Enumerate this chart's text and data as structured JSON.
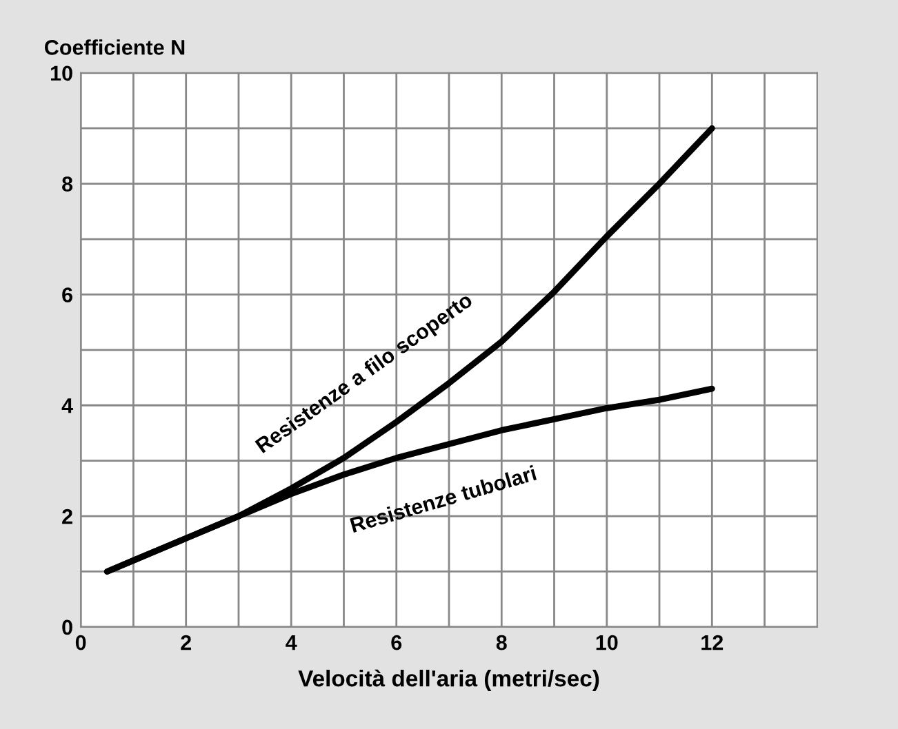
{
  "chart_data": {
    "type": "line",
    "ylabel": "Coefficiente N",
    "xlabel": "Velocità dell'aria (metri/sec)",
    "x": [
      0.5,
      1,
      2,
      3,
      4,
      5,
      6,
      7,
      8,
      9,
      10,
      11,
      12
    ],
    "series": [
      {
        "name": "Resistenze a filo scoperto",
        "color": "#000000",
        "values": [
          1.0,
          1.2,
          1.6,
          2.0,
          2.5,
          3.05,
          3.7,
          4.4,
          5.15,
          6.05,
          7.05,
          8.0,
          9.0
        ]
      },
      {
        "name": "Resistenze tubolari",
        "color": "#000000",
        "values": [
          1.0,
          1.2,
          1.6,
          2.0,
          2.4,
          2.75,
          3.05,
          3.3,
          3.55,
          3.75,
          3.95,
          4.1,
          4.3
        ]
      }
    ],
    "xlim": [
      0,
      14
    ],
    "ylim": [
      0,
      10
    ],
    "xticks": [
      0,
      {
        "value": 1,
        "label": null
      },
      2,
      {
        "value": 3,
        "label": null
      },
      4,
      {
        "value": 5,
        "label": null
      },
      6,
      {
        "value": 7,
        "label": null
      },
      8,
      {
        "value": 9,
        "label": null
      },
      10,
      {
        "value": 11,
        "label": null
      },
      12,
      {
        "value": 13,
        "label": null
      }
    ],
    "yticks": [
      0,
      {
        "value": 1,
        "label": null
      },
      2,
      {
        "value": 3,
        "label": null
      },
      4,
      {
        "value": 5,
        "label": null
      },
      6,
      {
        "value": 7,
        "label": null
      },
      8,
      {
        "value": 9,
        "label": null
      },
      10
    ],
    "grid": true,
    "legend": false,
    "marker": "none",
    "line_style": "solid"
  }
}
